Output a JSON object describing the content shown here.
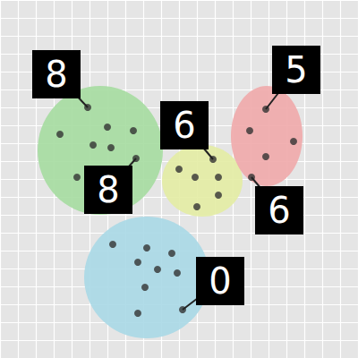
{
  "chart_data": {
    "type": "scatter",
    "xlim": [
      0,
      400
    ],
    "ylim": [
      0,
      400
    ],
    "xticks": [
      0,
      20,
      40,
      60,
      80,
      100,
      120,
      140,
      160,
      180,
      200,
      220,
      240,
      260,
      280,
      300,
      320,
      340,
      360,
      380,
      400
    ],
    "yticks": [
      0,
      20,
      40,
      60,
      80,
      100,
      120,
      140,
      160,
      180,
      200,
      220,
      240,
      260,
      280,
      300,
      320,
      340,
      360,
      380,
      400
    ],
    "grid": true,
    "tick_labels": false,
    "series": [
      {
        "color": "#a5dca0",
        "center": [
          112,
          168
        ],
        "rx": 70,
        "ry": 72,
        "x": [
          98,
          120,
          149,
          67,
          104,
          124,
          152,
          86
        ],
        "y": [
          120,
          142,
          146,
          150,
          162,
          165,
          177,
          198
        ]
      },
      {
        "color": "#e3eca3",
        "center": [
          226,
          202
        ],
        "rx": 45,
        "ry": 40,
        "x": [
          238,
          200,
          218,
          244,
          244,
          220
        ],
        "y": [
          178,
          189,
          198,
          198,
          218,
          231
        ]
      },
      {
        "color": "#f0a9aa",
        "center": [
          298,
          152
        ],
        "rx": 40,
        "ry": 56,
        "x": [
          297,
          279,
          328,
          297,
          281
        ],
        "y": [
          122,
          146,
          158,
          175,
          198
        ]
      },
      {
        "color": "#a9d8e6",
        "center": [
          164,
          310
        ],
        "rx": 70,
        "ry": 68,
        "x": [
          126,
          164,
          192,
          154,
          176,
          198,
          162,
          154,
          204
        ],
        "y": [
          273,
          277,
          283,
          293,
          301,
          305,
          321,
          350,
          346
        ]
      }
    ],
    "annotations": [
      {
        "text": "8",
        "x": 98,
        "y": 120
      },
      {
        "text": "8",
        "x": 152,
        "y": 177
      },
      {
        "text": "6",
        "x": 238,
        "y": 178
      },
      {
        "text": "5",
        "x": 297,
        "y": 122
      },
      {
        "text": "6",
        "x": 281,
        "y": 198
      },
      {
        "text": "0",
        "x": 204,
        "y": 346
      }
    ]
  }
}
